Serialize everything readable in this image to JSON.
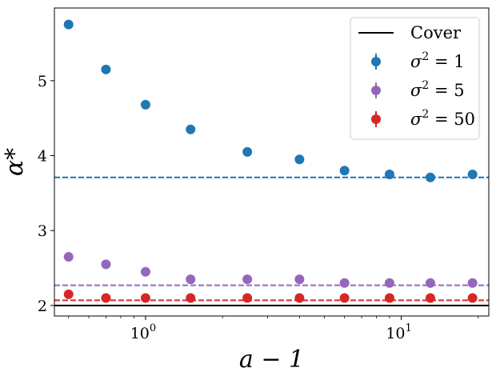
{
  "chart_data": {
    "type": "scatter",
    "x_scale": "log",
    "xlabel": "a − 1",
    "ylabel": "α*",
    "xlim": [
      0.44,
      22
    ],
    "ylim": [
      1.86,
      5.97
    ],
    "grid": false,
    "legend_position": "top-right",
    "y_ticks": [
      {
        "value": 2,
        "label": "2"
      },
      {
        "value": 3,
        "label": "3"
      },
      {
        "value": 4,
        "label": "4"
      },
      {
        "value": 5,
        "label": "5"
      }
    ],
    "x_ticks": [
      {
        "value": 1,
        "base": "10",
        "exp": "0"
      },
      {
        "value": 10,
        "base": "10",
        "exp": "1"
      }
    ],
    "cover_line": {
      "name": "Cover",
      "y": 2.0,
      "color": "#000000"
    },
    "series": [
      {
        "name": "σ² = 1",
        "symbol": "σ",
        "sup": "2",
        "rhs": " = 1",
        "color": "#1f77b4",
        "asymptote": 3.71,
        "x": [
          0.5,
          0.7,
          1.0,
          1.5,
          2.5,
          4.0,
          6.0,
          9.0,
          13.0,
          19.0
        ],
        "y": [
          5.75,
          5.15,
          4.68,
          4.35,
          4.05,
          3.95,
          3.8,
          3.75,
          3.71,
          3.75
        ]
      },
      {
        "name": "σ² = 5",
        "symbol": "σ",
        "sup": "2",
        "rhs": " = 5",
        "color": "#9467bd",
        "asymptote": 2.27,
        "x": [
          0.5,
          0.7,
          1.0,
          1.5,
          2.5,
          4.0,
          6.0,
          9.0,
          13.0,
          19.0
        ],
        "y": [
          2.65,
          2.55,
          2.45,
          2.35,
          2.35,
          2.35,
          2.3,
          2.3,
          2.3,
          2.3
        ]
      },
      {
        "name": "σ² = 50",
        "symbol": "σ",
        "sup": "2",
        "rhs": " = 50",
        "color": "#d62728",
        "asymptote": 2.07,
        "x": [
          0.5,
          0.7,
          1.0,
          1.5,
          2.5,
          4.0,
          6.0,
          9.0,
          13.0,
          19.0
        ],
        "y": [
          2.15,
          2.1,
          2.1,
          2.1,
          2.1,
          2.1,
          2.1,
          2.1,
          2.1,
          2.1
        ]
      }
    ]
  }
}
